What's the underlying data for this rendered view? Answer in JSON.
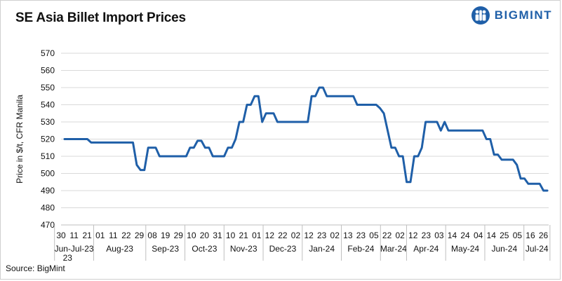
{
  "header": {
    "title": "SE Asia Billet Import Prices",
    "brand": "BIGMINT"
  },
  "footer": {
    "source": "Source:  BigMint"
  },
  "colors": {
    "line": "#1f5fa8",
    "brand": "#1f5fa8",
    "grid": "#d9d9d9"
  },
  "chart_data": {
    "type": "line",
    "title": "SE Asia Billet Import Prices",
    "ylabel": "Price in $/t, CFR Manila",
    "xlabel": "",
    "ylim": [
      470,
      570
    ],
    "yticks": [
      470,
      480,
      490,
      500,
      510,
      520,
      530,
      540,
      550,
      560,
      570
    ],
    "grid": "horizontal",
    "x_day_ticks": [
      "30",
      "11",
      "21",
      "01",
      "11",
      "22",
      "29",
      "08",
      "19",
      "29",
      "10",
      "20",
      "31",
      "10",
      "21",
      "01",
      "12",
      "22",
      "02",
      "12",
      "23",
      "02",
      "13",
      "23",
      "05",
      "22",
      "02",
      "12",
      "23",
      "03",
      "14",
      "24",
      "04",
      "14",
      "25",
      "05",
      "16",
      "26"
    ],
    "x_month_labels": [
      "Jun-Jul-23",
      "Aug-23",
      "Sep-23",
      "Oct-23",
      "Nov-23",
      "Dec-23",
      "Jan-24",
      "Feb-24",
      "Mar-24",
      "Apr-24",
      "May-24",
      "Jun-24",
      "Jul-24"
    ],
    "x_year_label": "23",
    "series": [
      {
        "values": [
          520,
          520,
          520,
          520,
          520,
          520,
          520,
          518,
          518,
          518,
          518,
          518,
          518,
          518,
          518,
          518,
          518,
          518,
          518,
          505,
          502,
          502,
          515,
          515,
          515,
          510,
          510,
          510,
          510,
          510,
          510,
          510,
          510,
          515,
          515,
          519,
          519,
          515,
          515,
          510,
          510,
          510,
          510,
          515,
          515,
          520,
          530,
          530,
          540,
          540,
          545,
          545,
          530,
          535,
          535,
          535,
          530,
          530,
          530,
          530,
          530,
          530,
          530,
          530,
          530,
          545,
          545,
          550,
          550,
          545,
          545,
          545,
          545,
          545,
          545,
          545,
          545,
          540,
          540,
          540,
          540,
          540,
          540,
          538,
          535,
          525,
          515,
          515,
          510,
          510,
          495,
          495,
          510,
          510,
          515,
          530,
          530,
          530,
          530,
          525,
          530,
          525,
          525,
          525,
          525,
          525,
          525,
          525,
          525,
          525,
          525,
          520,
          520,
          511,
          511,
          508,
          508,
          508,
          508,
          505,
          497,
          497,
          494,
          494,
          494,
          494,
          490,
          490
        ]
      }
    ]
  }
}
